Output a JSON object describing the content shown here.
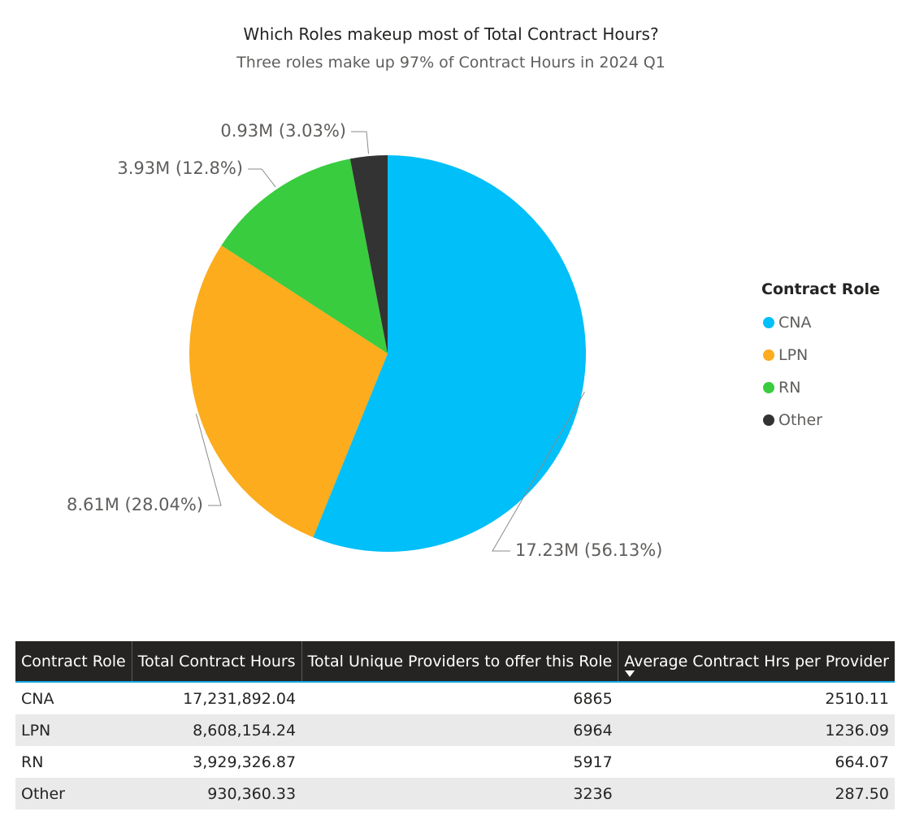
{
  "chart_data": {
    "type": "pie",
    "title": "Which Roles makeup most of Total Contract Hours?",
    "subtitle": "Three roles make up 97% of Contract Hours in 2024 Q1",
    "legend_title": "Contract Role",
    "legend_position": "right",
    "slices": [
      {
        "label": "CNA",
        "value": 17231892.04,
        "data_label": "17.23M (56.13%)",
        "color": "#01BFF8"
      },
      {
        "label": "LPN",
        "value": 8608154.24,
        "data_label": "8.61M (28.04%)",
        "color": "#FCAC1C"
      },
      {
        "label": "RN",
        "value": 3929326.87,
        "data_label": "3.93M (12.8%)",
        "color": "#3ACC3F"
      },
      {
        "label": "Other",
        "value": 930360.33,
        "data_label": "0.93M (3.03%)",
        "color": "#333333"
      }
    ]
  },
  "table": {
    "headers": [
      "Contract Role",
      "Total Contract Hours",
      "Total Unique Providers to offer this Role",
      "Average Contract Hrs per Provider"
    ],
    "rows": [
      [
        "CNA",
        "17,231,892.04",
        "6865",
        "2510.11"
      ],
      [
        "LPN",
        "8,608,154.24",
        "6964",
        "1236.09"
      ],
      [
        "RN",
        "3,929,326.87",
        "5917",
        "664.07"
      ],
      [
        "Other",
        "930,360.33",
        "3236",
        "287.50"
      ]
    ],
    "sorted_column": "Average Contract Hrs per Provider",
    "sort_direction": "descending"
  }
}
